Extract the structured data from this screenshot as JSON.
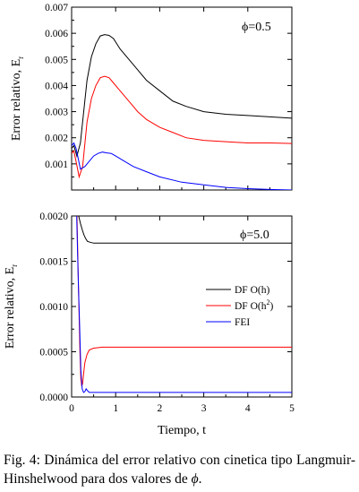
{
  "chart_data": [
    {
      "type": "line",
      "annotation": "ϕ=0.5",
      "ylabel": "Error relativo, E",
      "ylabel_subscript": "r",
      "xlabel": "",
      "xlim": [
        0,
        5
      ],
      "ylim": [
        0,
        0.007
      ],
      "x_ticks": [
        0,
        1,
        2,
        3,
        4,
        5
      ],
      "y_ticks": [
        0.001,
        0.002,
        0.003,
        0.004,
        0.005,
        0.006,
        0.007
      ],
      "y_tick_labels": [
        "0.001",
        "0.002",
        "0.003",
        "0.004",
        "0.005",
        "0.006",
        "0.007"
      ],
      "series": [
        {
          "name": "DF O(h)",
          "color": "#000000",
          "x": [
            0,
            0.05,
            0.12,
            0.2,
            0.28,
            0.35,
            0.45,
            0.55,
            0.65,
            0.75,
            0.85,
            0.95,
            1.1,
            1.3,
            1.5,
            1.7,
            2.0,
            2.3,
            2.6,
            3.0,
            3.5,
            4.0,
            4.5,
            5.0
          ],
          "y": [
            0.0016,
            0.0017,
            0.0013,
            0.0018,
            0.0031,
            0.0042,
            0.0051,
            0.0056,
            0.0059,
            0.00595,
            0.00592,
            0.0058,
            0.0054,
            0.005,
            0.0046,
            0.0042,
            0.0038,
            0.0034,
            0.0032,
            0.003,
            0.0029,
            0.00285,
            0.0028,
            0.00275
          ]
        },
        {
          "name": "DF O(h²)",
          "color": "#ff0000",
          "x": [
            0,
            0.05,
            0.1,
            0.17,
            0.25,
            0.35,
            0.45,
            0.55,
            0.65,
            0.75,
            0.85,
            0.95,
            1.1,
            1.3,
            1.5,
            1.7,
            2.0,
            2.3,
            2.6,
            3.0,
            3.5,
            4.0,
            4.5,
            5.0
          ],
          "y": [
            0.0014,
            0.0015,
            0.0011,
            0.0005,
            0.0009,
            0.0026,
            0.0035,
            0.004,
            0.0043,
            0.00435,
            0.0043,
            0.0041,
            0.0038,
            0.0034,
            0.003,
            0.0027,
            0.0024,
            0.0022,
            0.002,
            0.0019,
            0.00185,
            0.0018,
            0.0018,
            0.00178
          ]
        },
        {
          "name": "FEI",
          "color": "#0000ff",
          "x": [
            0,
            0.05,
            0.1,
            0.15,
            0.2,
            0.3,
            0.4,
            0.5,
            0.6,
            0.7,
            0.8,
            0.9,
            1.0,
            1.2,
            1.4,
            1.7,
            2.0,
            2.5,
            3.0,
            3.5,
            4.0,
            4.5,
            5.0
          ],
          "y": [
            0.0017,
            0.0018,
            0.0016,
            0.0012,
            0.0008,
            0.0009,
            0.0011,
            0.0013,
            0.0014,
            0.00145,
            0.00142,
            0.0014,
            0.0013,
            0.0011,
            0.0009,
            0.0007,
            0.0005,
            0.0003,
            0.0002,
            0.0001,
            5e-05,
            2e-05,
            0.0
          ]
        }
      ]
    },
    {
      "type": "line",
      "annotation": "ϕ=5.0",
      "ylabel": "Error relativo, E",
      "ylabel_subscript": "r",
      "xlabel": "Tiempo, t",
      "xlim": [
        0,
        5
      ],
      "ylim": [
        0,
        0.002
      ],
      "x_ticks": [
        0,
        1,
        2,
        3,
        4,
        5
      ],
      "x_tick_labels": [
        "0",
        "1",
        "2",
        "3",
        "4",
        "5"
      ],
      "y_ticks": [
        0,
        0.0005,
        0.001,
        0.0015,
        0.002
      ],
      "y_tick_labels": [
        "0.0000",
        "0.0005",
        "0.0010",
        "0.0015",
        "0.0020"
      ],
      "legend": {
        "position": "right",
        "entries": [
          {
            "text": "DF O(h)",
            "color": "#000000"
          },
          {
            "text": "DF O(h",
            "sup": "2",
            "tail": ")",
            "color": "#ff0000"
          },
          {
            "text": "FEI",
            "color": "#0000ff"
          }
        ]
      },
      "series": [
        {
          "name": "DF O(h)",
          "color": "#000000",
          "x": [
            0.07,
            0.12,
            0.16,
            0.2,
            0.24,
            0.28,
            0.32,
            0.36,
            0.42,
            0.5,
            0.7,
            1.0,
            2.0,
            3.0,
            4.0,
            5.0
          ],
          "y": [
            0.0025,
            0.0021,
            0.002,
            0.00192,
            0.00185,
            0.00179,
            0.00175,
            0.00172,
            0.00171,
            0.0017,
            0.0017,
            0.0017,
            0.0017,
            0.0017,
            0.0017,
            0.0017
          ]
        },
        {
          "name": "DF O(h²)",
          "color": "#ff0000",
          "x": [
            0.1,
            0.13,
            0.16,
            0.19,
            0.21,
            0.23,
            0.25,
            0.27,
            0.3,
            0.35,
            0.4,
            0.5,
            0.7,
            1.0,
            2.0,
            3.0,
            4.0,
            5.0
          ],
          "y": [
            0.0025,
            0.0018,
            0.0011,
            0.0005,
            0.0002,
            0.00012,
            0.00015,
            0.00025,
            0.00038,
            0.00047,
            0.00052,
            0.00054,
            0.00055,
            0.00055,
            0.00055,
            0.00055,
            0.00055,
            0.00055
          ]
        },
        {
          "name": "FEI",
          "color": "#0000ff",
          "x": [
            0.09,
            0.12,
            0.15,
            0.18,
            0.21,
            0.24,
            0.27,
            0.3,
            0.33,
            0.36,
            0.4,
            0.5,
            0.7,
            1.0,
            2.0,
            3.0,
            4.0,
            5.0
          ],
          "y": [
            0.0025,
            0.0019,
            0.0013,
            0.0008,
            0.0003,
            9e-05,
            5e-05,
            6e-05,
            9e-05,
            7e-05,
            5e-05,
            5e-05,
            5e-05,
            5e-05,
            5e-05,
            5e-05,
            5e-05,
            5e-05
          ]
        }
      ]
    }
  ],
  "caption": {
    "label": "Fig. 4:",
    "text": "Dinámica del error relativo con cinetica tipo Langmuir-Hinshelwood para dos valores de",
    "symbol": "ϕ",
    "end": "."
  }
}
